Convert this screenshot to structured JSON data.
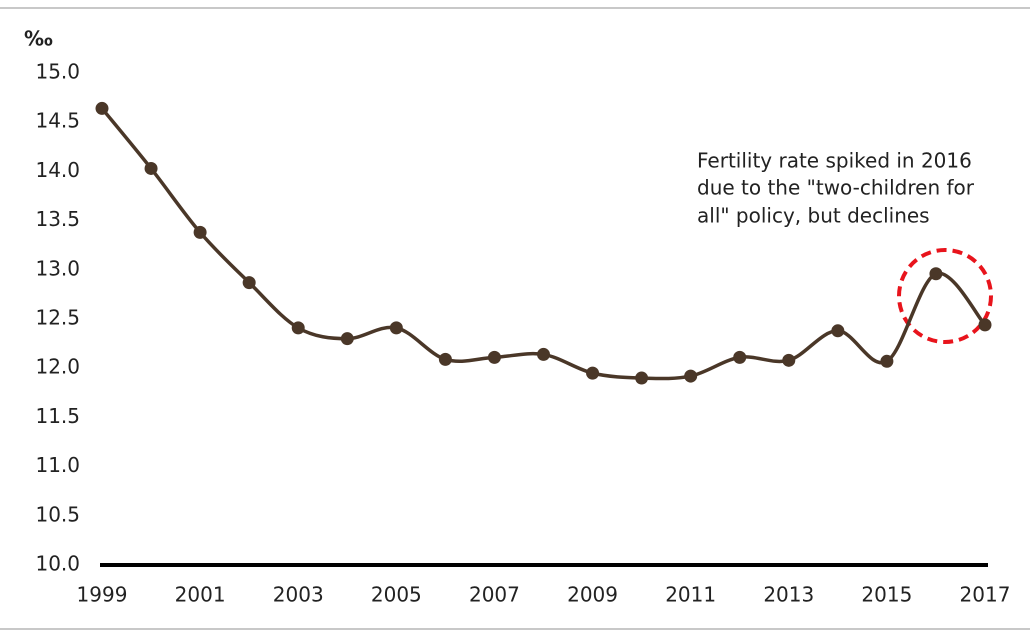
{
  "chart_data": {
    "type": "line",
    "y_unit": "‰",
    "annotation": [
      "Fertility rate spiked in 2016",
      "due to the \"two-children for",
      "all\" policy, but declines"
    ],
    "x": [
      1999,
      2000,
      2001,
      2002,
      2003,
      2004,
      2005,
      2006,
      2007,
      2008,
      2009,
      2010,
      2011,
      2012,
      2013,
      2014,
      2015,
      2016,
      2017
    ],
    "series": [
      {
        "color": "#4a3728",
        "values": [
          14.64,
          14.03,
          13.38,
          12.87,
          12.41,
          12.3,
          12.41,
          12.09,
          12.11,
          12.14,
          11.95,
          11.9,
          11.92,
          12.11,
          12.08,
          12.38,
          12.07,
          12.96,
          12.44
        ]
      }
    ],
    "xlim": [
      1999,
      2017
    ],
    "xticks": [
      1999,
      2001,
      2003,
      2005,
      2007,
      2009,
      2011,
      2013,
      2015,
      2017
    ],
    "ylim": [
      10,
      15
    ],
    "yticks": [
      {
        "value": 10,
        "label": "10.0"
      },
      {
        "value": 10.5,
        "label": "10.5"
      },
      {
        "value": 11,
        "label": "11.0"
      },
      {
        "value": 11.5,
        "label": "11.5"
      },
      {
        "value": 12,
        "label": "12.0"
      },
      {
        "value": 12.5,
        "label": "12.5"
      },
      {
        "value": 13,
        "label": "13.0"
      },
      {
        "value": 13.5,
        "label": "13.5"
      },
      {
        "value": 14,
        "label": "14.0"
      },
      {
        "value": 14.5,
        "label": "14.5"
      },
      {
        "value": 15,
        "label": "15.0"
      }
    ],
    "grid": false
  }
}
